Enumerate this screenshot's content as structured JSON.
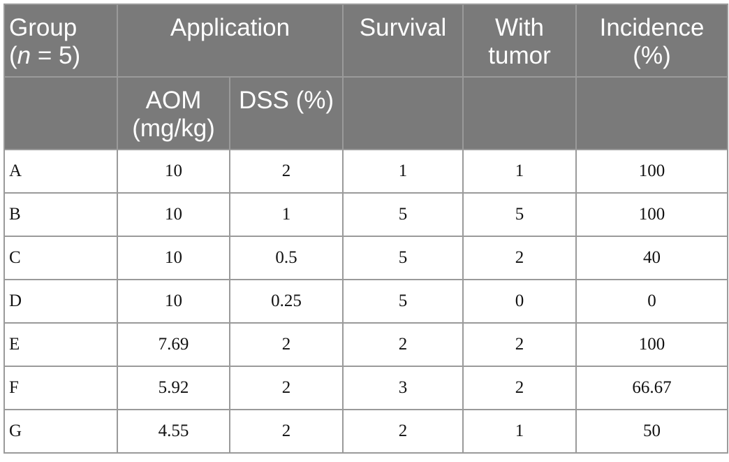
{
  "header": {
    "group_line1": "Group",
    "group_n": "n",
    "group_n_rest": " = 5)",
    "application": "Application",
    "survival": "Survival",
    "with_tumor_line1": "With",
    "with_tumor_line2": "tumor",
    "incidence_line1": "Incidence",
    "incidence_line2": "(%)",
    "aom_line1": "AOM",
    "aom_line2": "(mg/kg)",
    "dss": "DSS (%)"
  },
  "rows": [
    {
      "group": "A",
      "aom": "10",
      "dss": "2",
      "survival": "1",
      "with_tumor": "1",
      "incidence": "100"
    },
    {
      "group": "B",
      "aom": "10",
      "dss": "1",
      "survival": "5",
      "with_tumor": "5",
      "incidence": "100"
    },
    {
      "group": "C",
      "aom": "10",
      "dss": "0.5",
      "survival": "5",
      "with_tumor": "2",
      "incidence": "40"
    },
    {
      "group": "D",
      "aom": "10",
      "dss": "0.25",
      "survival": "5",
      "with_tumor": "0",
      "incidence": "0"
    },
    {
      "group": "E",
      "aom": "7.69",
      "dss": "2",
      "survival": "2",
      "with_tumor": "2",
      "incidence": "100"
    },
    {
      "group": "F",
      "aom": "5.92",
      "dss": "2",
      "survival": "3",
      "with_tumor": "2",
      "incidence": "66.67"
    },
    {
      "group": "G",
      "aom": "4.55",
      "dss": "2",
      "survival": "2",
      "with_tumor": "1",
      "incidence": "50"
    }
  ]
}
